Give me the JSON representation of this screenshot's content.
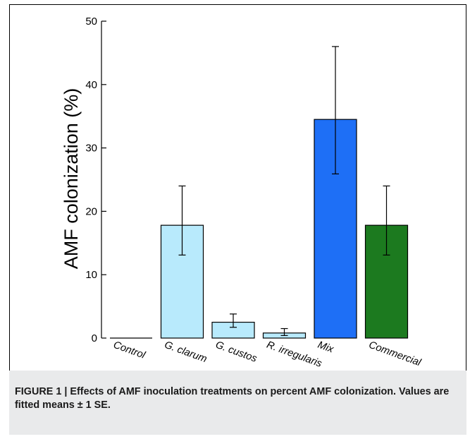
{
  "chart_data": {
    "type": "bar",
    "title": "",
    "xlabel": "",
    "ylabel": "AMF colonization (%)",
    "ylim": [
      0,
      50
    ],
    "yticks": [
      0,
      10,
      20,
      30,
      40,
      50
    ],
    "categories": [
      "Control",
      "G. clarum",
      "G. custos",
      "R. irregularis",
      "Mix",
      "Commercial"
    ],
    "values": [
      0,
      17.8,
      2.5,
      0.8,
      34.5,
      17.8
    ],
    "error_low": [
      0,
      13.1,
      1.7,
      0.4,
      25.9,
      13.1
    ],
    "error_high": [
      0,
      24.0,
      3.8,
      1.5,
      46.0,
      24.0
    ],
    "bar_colors": [
      "#b8eafc",
      "#b8eafc",
      "#b8eafc",
      "#b8eafc",
      "#1e6ff6",
      "#1c7a1f"
    ],
    "grid": false,
    "legend": "none"
  },
  "caption": {
    "label": "FIGURE 1 | ",
    "text": "Effects of AMF inoculation treatments on percent AMF colonization. Values are fitted means ± 1 SE."
  }
}
